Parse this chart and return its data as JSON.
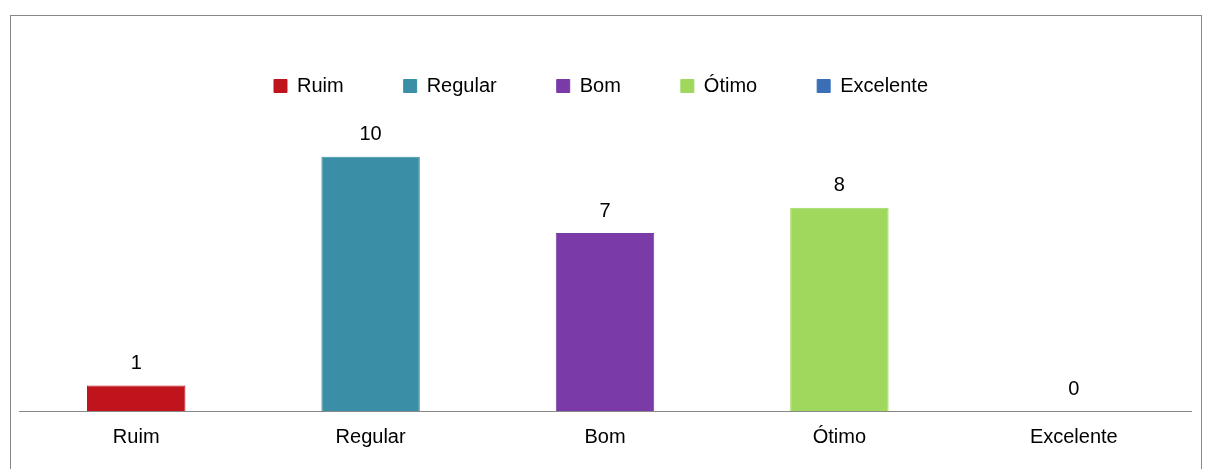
{
  "chart_data": {
    "type": "bar",
    "categories": [
      "Ruim",
      "Regular",
      "Bom",
      "Ótimo",
      "Excelente"
    ],
    "stacked": true,
    "series": [
      {
        "name": "Ruim",
        "color": "#c0141c",
        "values": [
          1,
          null,
          null,
          null,
          null
        ]
      },
      {
        "name": "Regular",
        "color": "#3a8fa6",
        "values": [
          null,
          10,
          null,
          null,
          null
        ]
      },
      {
        "name": "Bom",
        "color": "#7a3aa8",
        "values": [
          null,
          null,
          7,
          null,
          null
        ]
      },
      {
        "name": "Ótimo",
        "color": "#9fd85c",
        "values": [
          null,
          null,
          null,
          8,
          null
        ]
      },
      {
        "name": "Excelente",
        "color": "#3a6fb8",
        "values": [
          null,
          null,
          null,
          null,
          0
        ]
      }
    ],
    "data_labels": true,
    "legend": "top",
    "grid": false
  }
}
